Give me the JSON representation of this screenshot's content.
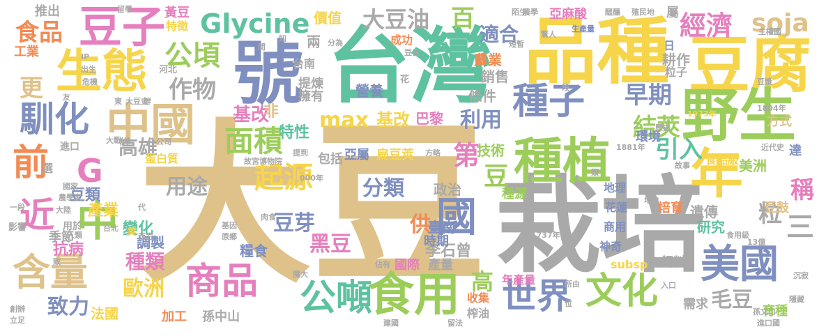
{
  "colors": {
    "tan": "#dfc28a",
    "gray": "#a9a9a9",
    "teal": "#5ec2a0",
    "blue": "#7f8fbf",
    "yellow": "#f6d54a",
    "pink": "#e57fbd",
    "green": "#9ccd5a",
    "orange": "#f28b54"
  },
  "words": [
    {
      "text": "大豆",
      "color": "tan"
    },
    {
      "text": "栽培",
      "color": "gray"
    },
    {
      "text": "台灣",
      "color": "teal"
    },
    {
      "text": "品種",
      "color": "yellow"
    },
    {
      "text": "號",
      "color": "blue"
    },
    {
      "text": "豆腐",
      "color": "yellow"
    },
    {
      "text": "野生",
      "color": "green"
    },
    {
      "text": "種植",
      "color": "green"
    },
    {
      "text": "年",
      "color": "yellow"
    },
    {
      "text": "中國",
      "color": "tan"
    },
    {
      "text": "生態",
      "color": "yellow"
    },
    {
      "text": "豆子",
      "color": "pink"
    },
    {
      "text": "食用",
      "color": "green"
    },
    {
      "text": "美國",
      "color": "blue"
    },
    {
      "text": "商品",
      "color": "pink"
    },
    {
      "text": "含量",
      "color": "tan"
    },
    {
      "text": "文化",
      "color": "green"
    },
    {
      "text": "世界",
      "color": "blue"
    },
    {
      "text": "公噸",
      "color": "teal"
    },
    {
      "text": "種子",
      "color": "blue"
    },
    {
      "text": "馴化",
      "color": "blue"
    },
    {
      "text": "Glycine",
      "color": "teal"
    },
    {
      "text": "中",
      "color": "green"
    },
    {
      "text": "國",
      "color": "blue"
    },
    {
      "text": "前",
      "color": "orange"
    },
    {
      "text": "近",
      "color": "pink"
    },
    {
      "text": "G",
      "color": "pink"
    },
    {
      "text": "面積",
      "color": "green"
    },
    {
      "text": "起源",
      "color": "yellow"
    },
    {
      "text": "分類",
      "color": "blue"
    },
    {
      "text": "公頃",
      "color": "green"
    },
    {
      "text": "大豆油",
      "color": "gray"
    },
    {
      "text": "經濟",
      "color": "pink"
    },
    {
      "text": "soja",
      "color": "tan"
    },
    {
      "text": "食品",
      "color": "orange"
    },
    {
      "text": "作物",
      "color": "gray"
    },
    {
      "text": "max",
      "color": "yellow"
    },
    {
      "text": "結莢",
      "color": "green"
    },
    {
      "text": "早期",
      "color": "blue"
    },
    {
      "text": "引入",
      "color": "teal"
    },
    {
      "text": "百",
      "color": "green"
    },
    {
      "text": "適合",
      "color": "blue"
    },
    {
      "text": "高雄",
      "color": "gray"
    },
    {
      "text": "第",
      "color": "pink"
    },
    {
      "text": "豆",
      "color": "green"
    },
    {
      "text": "黑豆",
      "color": "pink"
    },
    {
      "text": "用途",
      "color": "gray"
    },
    {
      "text": "歐洲",
      "color": "yellow"
    },
    {
      "text": "致力",
      "color": "blue"
    },
    {
      "text": "毛豆",
      "color": "gray"
    },
    {
      "text": "三",
      "color": "gray"
    },
    {
      "text": "粒",
      "color": "gray"
    },
    {
      "text": "稱",
      "color": "pink"
    },
    {
      "text": "高",
      "color": "green"
    },
    {
      "text": "種類",
      "color": "pink"
    },
    {
      "text": "豆芽",
      "color": "blue"
    },
    {
      "text": "基改",
      "color": "pink"
    },
    {
      "text": "利用",
      "color": "blue"
    },
    {
      "text": "供",
      "color": "orange"
    },
    {
      "text": "更",
      "color": "tan"
    },
    {
      "text": "豆類",
      "color": "blue"
    },
    {
      "text": "產業",
      "color": "yellow"
    },
    {
      "text": "抗病",
      "color": "pink"
    },
    {
      "text": "變化",
      "color": "teal"
    },
    {
      "text": "營養",
      "color": "blue"
    },
    {
      "text": "基改",
      "color": "yellow"
    },
    {
      "text": "巴黎",
      "color": "pink"
    },
    {
      "text": "特性",
      "color": "teal"
    },
    {
      "text": "非",
      "color": "tan"
    },
    {
      "text": "條件",
      "color": "gray"
    },
    {
      "text": "農業",
      "color": "orange"
    },
    {
      "text": "銷售",
      "color": "gray"
    },
    {
      "text": "耕作",
      "color": "gray"
    },
    {
      "text": "技術",
      "color": "green"
    },
    {
      "text": "研究",
      "color": "teal"
    },
    {
      "text": "美洲",
      "color": "green"
    },
    {
      "text": "遺傳",
      "color": "gray"
    },
    {
      "text": "豆鼓",
      "color": "tan"
    },
    {
      "text": "育種",
      "color": "green"
    },
    {
      "text": "需求",
      "color": "gray"
    },
    {
      "text": "法國",
      "color": "yellow"
    },
    {
      "text": "孫中山",
      "color": "gray"
    },
    {
      "text": "加工",
      "color": "orange"
    },
    {
      "text": "李石曾",
      "color": "gray"
    },
    {
      "text": "臺南",
      "color": "blue"
    },
    {
      "text": "時期",
      "color": "blue"
    },
    {
      "text": "國際",
      "color": "pink"
    },
    {
      "text": "產量",
      "color": "gray"
    },
    {
      "text": "年產量",
      "color": "pink"
    },
    {
      "text": "收集",
      "color": "orange"
    },
    {
      "text": "榨油",
      "color": "gray"
    },
    {
      "text": "糧食",
      "color": "blue"
    },
    {
      "text": "調製",
      "color": "blue"
    },
    {
      "text": "季節",
      "color": "gray"
    },
    {
      "text": "蛋白質",
      "color": "yellow"
    },
    {
      "text": "提煉",
      "color": "gray"
    },
    {
      "text": "擁有",
      "color": "gray"
    },
    {
      "text": "台南",
      "color": "gray"
    },
    {
      "text": "包括",
      "color": "gray"
    },
    {
      "text": "政治",
      "color": "gray"
    },
    {
      "text": "亞屬",
      "color": "blue"
    },
    {
      "text": "扁豆莢",
      "color": "yellow"
    },
    {
      "text": "黃豆",
      "color": "pink"
    },
    {
      "text": "特徵",
      "color": "yellow"
    },
    {
      "text": "價值",
      "color": "yellow"
    },
    {
      "text": "成功",
      "color": "orange"
    },
    {
      "text": "亞麻酸",
      "color": "pink"
    },
    {
      "text": "推出",
      "color": "gray"
    },
    {
      "text": "工業",
      "color": "orange"
    },
    {
      "text": "兩",
      "color": "gray"
    },
    {
      "text": "環境",
      "color": "blue"
    },
    {
      "text": "粒子",
      "color": "gray"
    },
    {
      "text": "屬",
      "color": "gray"
    },
    {
      "text": "日",
      "color": "blue"
    },
    {
      "text": "方式",
      "color": "tan"
    },
    {
      "text": "達",
      "color": "blue"
    },
    {
      "text": "食品級",
      "color": "yellow"
    },
    {
      "text": "神奇",
      "color": "blue"
    },
    {
      "text": "飼料",
      "color": "gray"
    },
    {
      "text": "培育",
      "color": "orange"
    },
    {
      "text": "花蓮",
      "color": "blue"
    },
    {
      "text": "地理",
      "color": "blue"
    },
    {
      "text": "商用",
      "color": "blue"
    },
    {
      "text": "種源",
      "color": "green"
    },
    {
      "text": "顆",
      "color": "gray"
    },
    {
      "text": "subsp",
      "color": "yellow"
    },
    {
      "text": "選",
      "color": "gray"
    },
    {
      "text": "進口",
      "color": "gray"
    },
    {
      "text": "用於",
      "color": "gray"
    },
    {
      "text": "美",
      "color": "yellow"
    },
    {
      "text": "影響",
      "color": "gray"
    },
    {
      "text": "約",
      "color": "gray"
    },
    {
      "text": "國家",
      "color": "gray"
    },
    {
      "text": "故宮博物院",
      "color": "gray"
    },
    {
      "text": "1881年",
      "color": "gray"
    },
    {
      "text": "1737年",
      "color": "gray"
    },
    {
      "text": "1973年",
      "color": "yellow"
    },
    {
      "text": "1804年",
      "color": "gray"
    },
    {
      "text": "近代史",
      "color": "gray"
    },
    {
      "text": "歷史",
      "color": "gray"
    },
    {
      "text": "故事",
      "color": "gray"
    },
    {
      "text": "13億",
      "color": "gray"
    },
    {
      "text": "食用級",
      "color": "gray"
    },
    {
      "text": "地位",
      "color": "gray"
    },
    {
      "text": "入口",
      "color": "gray"
    },
    {
      "text": "進口國",
      "color": "gray"
    },
    {
      "text": "孫文口",
      "color": "gray"
    },
    {
      "text": "隱藏",
      "color": "gray"
    },
    {
      "text": "沉寂",
      "color": "gray"
    },
    {
      "text": "留法",
      "color": "gray"
    },
    {
      "text": "建國",
      "color": "gray"
    },
    {
      "text": "佔有",
      "color": "gray"
    },
    {
      "text": "魔大",
      "color": "gray"
    },
    {
      "text": "基因",
      "color": "gray"
    },
    {
      "text": "原鄉",
      "color": "gray"
    },
    {
      "text": "肉食",
      "color": "gray"
    },
    {
      "text": "000年",
      "color": "gray"
    },
    {
      "text": "方略",
      "color": "gray"
    },
    {
      "text": "提到",
      "color": "gray"
    },
    {
      "text": "一段",
      "color": "gray"
    },
    {
      "text": "大陸",
      "color": "gray"
    },
    {
      "text": "農學家",
      "color": "gray"
    },
    {
      "text": "人類",
      "color": "gray"
    },
    {
      "text": "西方",
      "color": "gray"
    },
    {
      "text": "台北",
      "color": "gray"
    },
    {
      "text": "代",
      "color": "gray"
    },
    {
      "text": "致",
      "color": "gray"
    },
    {
      "text": "創辦",
      "color": "gray"
    },
    {
      "text": "立足",
      "color": "gray"
    },
    {
      "text": "大戰",
      "color": "gray"
    },
    {
      "text": "公司",
      "color": "gray"
    },
    {
      "text": "鮮",
      "color": "gray"
    },
    {
      "text": "大豆史",
      "color": "gray"
    },
    {
      "text": "東",
      "color": "gray"
    },
    {
      "text": "友",
      "color": "gray"
    },
    {
      "text": "IP",
      "color": "gray"
    },
    {
      "text": "出生",
      "color": "gray"
    },
    {
      "text": "危機",
      "color": "gray"
    },
    {
      "text": "河北",
      "color": "gray"
    },
    {
      "text": "花",
      "color": "gray"
    },
    {
      "text": "間",
      "color": "gray"
    },
    {
      "text": "知",
      "color": "gray"
    },
    {
      "text": "分為",
      "color": "gray"
    },
    {
      "text": "豆良",
      "color": "gray"
    },
    {
      "text": "短暫",
      "color": "gray"
    },
    {
      "text": "陌生",
      "color": "gray"
    },
    {
      "text": "留學",
      "color": "gray"
    },
    {
      "text": "農學",
      "color": "gray"
    },
    {
      "text": "醞釀",
      "color": "gray"
    },
    {
      "text": "殖民地",
      "color": "gray"
    },
    {
      "text": "驚人",
      "color": "gray"
    },
    {
      "text": "生產量",
      "color": "blue"
    },
    {
      "text": "段",
      "color": "gray"
    },
    {
      "text": "主權國",
      "color": "gray"
    },
    {
      "text": "豆漿",
      "color": "gray"
    },
    {
      "text": "所由",
      "color": "gray"
    },
    {
      "text": "位",
      "color": "gray"
    },
    {
      "text": "次",
      "color": "gray"
    },
    {
      "text": "類",
      "color": "gray"
    },
    {
      "text": "百",
      "color": "gray"
    }
  ]
}
